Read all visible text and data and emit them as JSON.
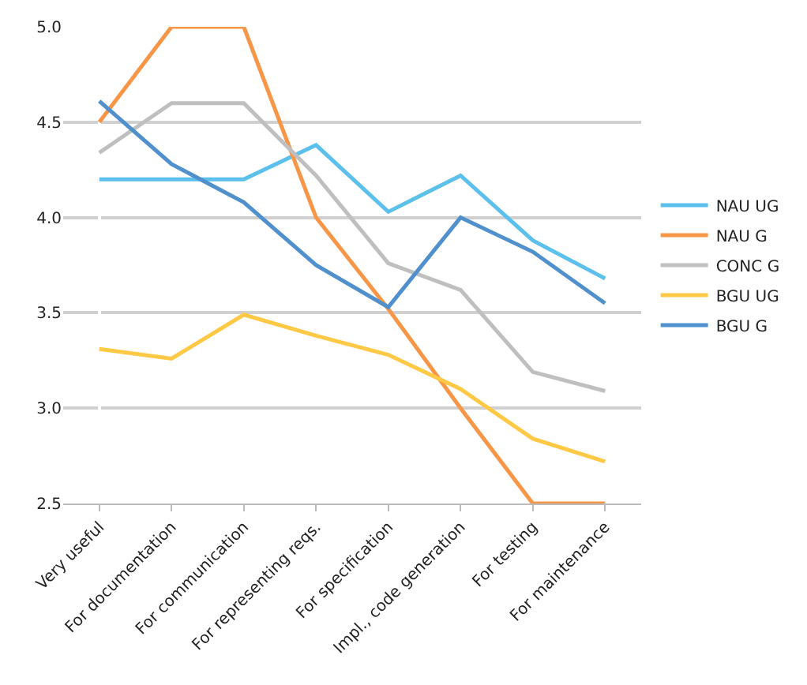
{
  "chart_data": {
    "type": "line",
    "categories": [
      "Very useful",
      "For documentation",
      "For communication",
      "For representing reqs.",
      "For specification",
      "Impl., code generation",
      "For testing",
      "For maintenance"
    ],
    "series": [
      {
        "name": "NAU UG",
        "color": "#5bc0eb",
        "values": [
          4.2,
          4.2,
          4.2,
          4.38,
          4.03,
          4.22,
          3.88,
          3.68
        ]
      },
      {
        "name": "NAU G",
        "color": "#f79646",
        "values": [
          4.5,
          5.0,
          5.0,
          4.0,
          3.52,
          3.0,
          2.5,
          2.5
        ]
      },
      {
        "name": "CONC G",
        "color": "#bfbfbf",
        "values": [
          4.34,
          4.6,
          4.6,
          4.22,
          3.76,
          3.62,
          3.19,
          3.09
        ]
      },
      {
        "name": "BGU UG",
        "color": "#ffc845",
        "values": [
          3.31,
          3.26,
          3.49,
          3.38,
          3.28,
          3.1,
          2.84,
          2.72
        ]
      },
      {
        "name": "BGU G",
        "color": "#4f90cd",
        "values": [
          4.61,
          4.28,
          4.08,
          3.75,
          3.53,
          4.0,
          3.82,
          3.55
        ]
      }
    ],
    "ylim": [
      2.5,
      5.0
    ],
    "yticks": [
      {
        "value": 2.5,
        "label": "2.5"
      },
      {
        "value": 3.0,
        "label": "3.0"
      },
      {
        "value": 3.5,
        "label": "3.5"
      },
      {
        "value": 4.0,
        "label": "4.0"
      },
      {
        "value": 4.5,
        "label": "4.5"
      },
      {
        "value": 5.0,
        "label": "5.0"
      }
    ],
    "grid": "y",
    "legend": "right",
    "marker": "none",
    "line_style": "solid"
  }
}
